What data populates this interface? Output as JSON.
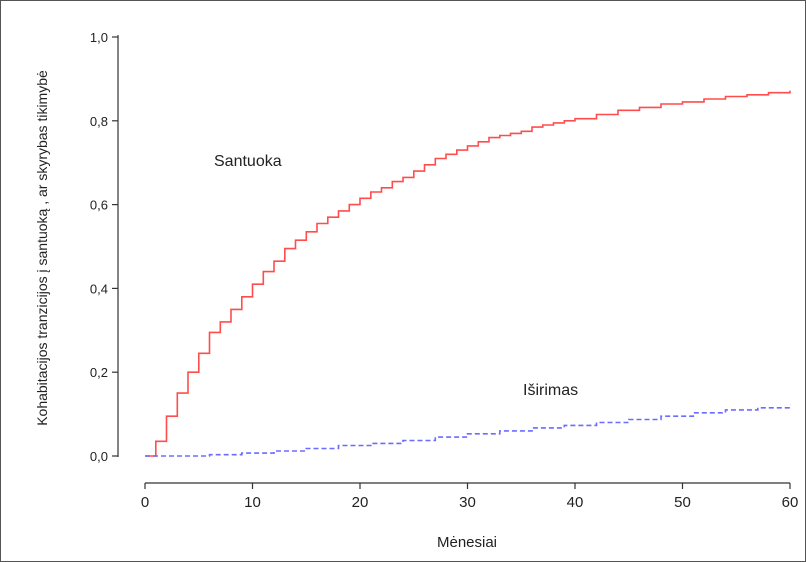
{
  "chart_data": {
    "type": "line",
    "title": "",
    "xlabel": "Mėnesiai",
    "ylabel": "Kohabitacijos tranzicijos į santuoką , ar skyrybas tikimybė",
    "xlim": [
      0,
      60
    ],
    "ylim": [
      0,
      1.0
    ],
    "xticks": [
      0,
      10,
      20,
      30,
      40,
      50,
      60
    ],
    "xtick_labels": [
      "0",
      "10",
      "20",
      "30",
      "40",
      "50",
      "60"
    ],
    "yticks": [
      0,
      0.2,
      0.4,
      0.6,
      0.8,
      1.0
    ],
    "ytick_labels": [
      "0,0",
      "0,2",
      "0,4",
      "0,6",
      "0,8",
      "1,0"
    ],
    "grid": false,
    "legend": "none",
    "series": [
      {
        "name": "Santuoka",
        "color": "#ff4d4d",
        "style": "solid-step",
        "x": [
          0,
          1,
          2,
          3,
          4,
          5,
          6,
          7,
          8,
          9,
          10,
          11,
          12,
          13,
          14,
          15,
          16,
          17,
          18,
          19,
          20,
          21,
          22,
          23,
          24,
          25,
          26,
          27,
          28,
          29,
          30,
          31,
          32,
          33,
          34,
          35,
          36,
          37,
          38,
          39,
          40,
          42,
          44,
          46,
          48,
          50,
          52,
          54,
          56,
          58,
          60
        ],
        "values": [
          0.0,
          0.035,
          0.095,
          0.15,
          0.2,
          0.245,
          0.295,
          0.32,
          0.35,
          0.38,
          0.41,
          0.44,
          0.465,
          0.495,
          0.515,
          0.535,
          0.555,
          0.57,
          0.585,
          0.6,
          0.615,
          0.63,
          0.64,
          0.655,
          0.665,
          0.68,
          0.695,
          0.71,
          0.72,
          0.73,
          0.74,
          0.75,
          0.76,
          0.765,
          0.77,
          0.775,
          0.785,
          0.79,
          0.795,
          0.8,
          0.805,
          0.815,
          0.825,
          0.832,
          0.84,
          0.845,
          0.852,
          0.858,
          0.862,
          0.867,
          0.872
        ]
      },
      {
        "name": "Iširimas",
        "color": "#6b6bff",
        "style": "dashed-step",
        "x": [
          0,
          3,
          6,
          9,
          12,
          15,
          18,
          21,
          24,
          27,
          30,
          33,
          36,
          39,
          42,
          45,
          48,
          51,
          54,
          57,
          60
        ],
        "values": [
          0.0,
          0.0,
          0.003,
          0.007,
          0.012,
          0.018,
          0.025,
          0.03,
          0.037,
          0.045,
          0.053,
          0.06,
          0.067,
          0.073,
          0.08,
          0.087,
          0.095,
          0.103,
          0.11,
          0.115,
          0.122
        ]
      }
    ]
  }
}
